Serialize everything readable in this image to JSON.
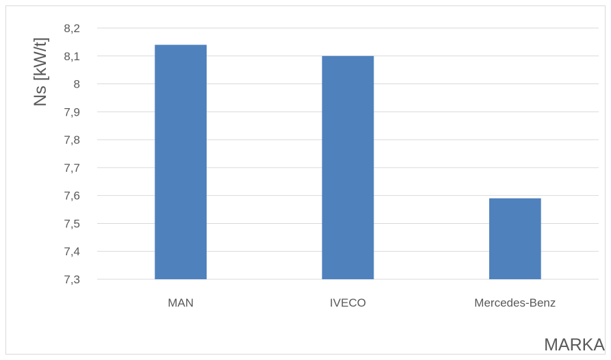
{
  "chart_data": {
    "type": "bar",
    "categories": [
      "MAN",
      "IVECO",
      "Mercedes-Benz"
    ],
    "values": [
      8.14,
      8.1,
      7.59
    ],
    "ylabel": "Ns [kW/t]",
    "xlabel": "MARKA",
    "ylim": [
      7.3,
      8.2
    ],
    "yticks": [
      "7,3",
      "7,4",
      "7,5",
      "7,6",
      "7,7",
      "7,8",
      "7,9",
      "8",
      "8,1",
      "8,2"
    ],
    "grid": true,
    "bar_color": "#4f81bd",
    "grid_color": "#d9d9d9"
  }
}
